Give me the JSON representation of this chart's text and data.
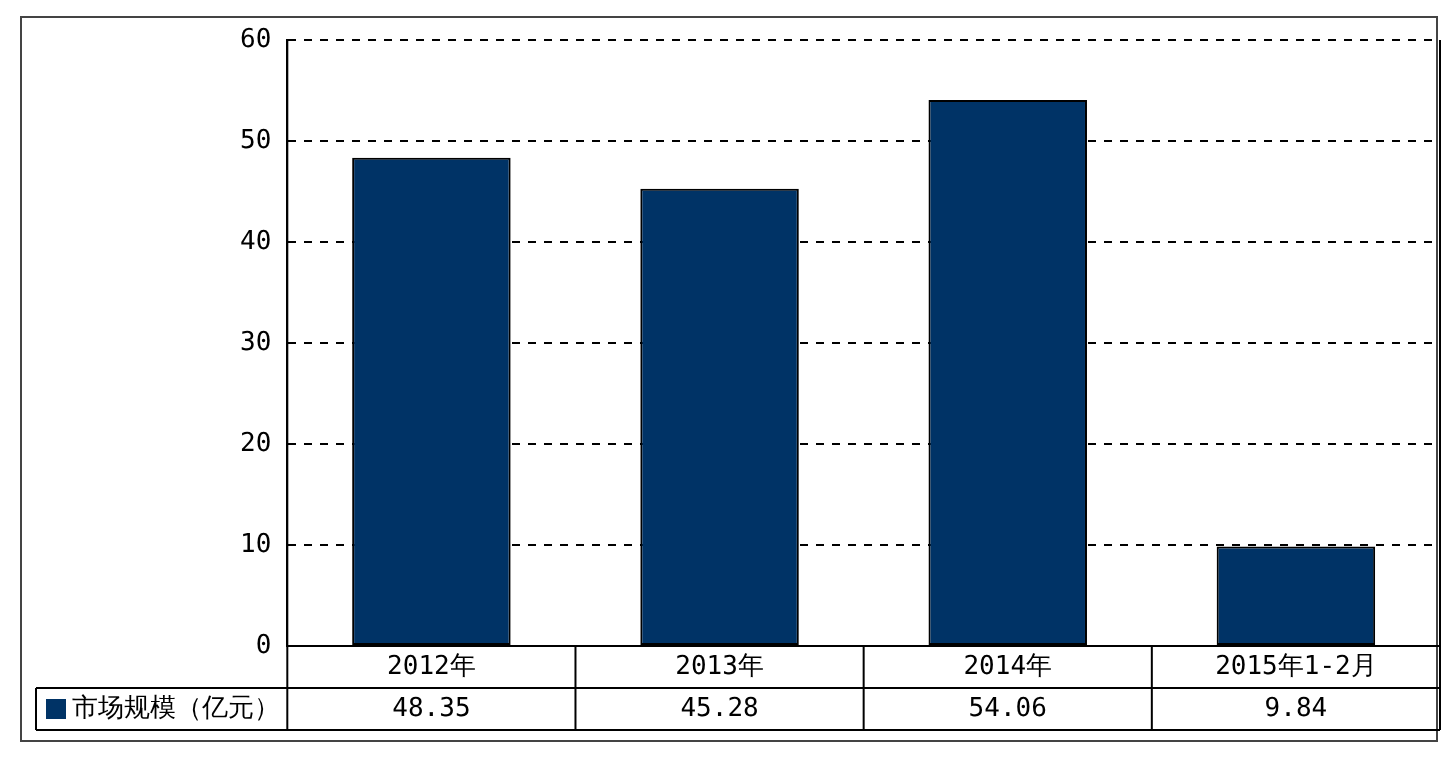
{
  "chart_data": {
    "type": "bar",
    "categories": [
      "2012年",
      "2013年",
      "2014年",
      "2015年1-2月"
    ],
    "series": [
      {
        "name": "市场规模（亿元）",
        "color": "#003366",
        "values": [
          48.35,
          45.28,
          54.06,
          9.84
        ]
      }
    ],
    "ylim": [
      0,
      60
    ],
    "yticks": [
      0,
      10,
      20,
      30,
      40,
      50,
      60
    ],
    "grid": "y",
    "data_labels": true,
    "legend": "bottom"
  }
}
